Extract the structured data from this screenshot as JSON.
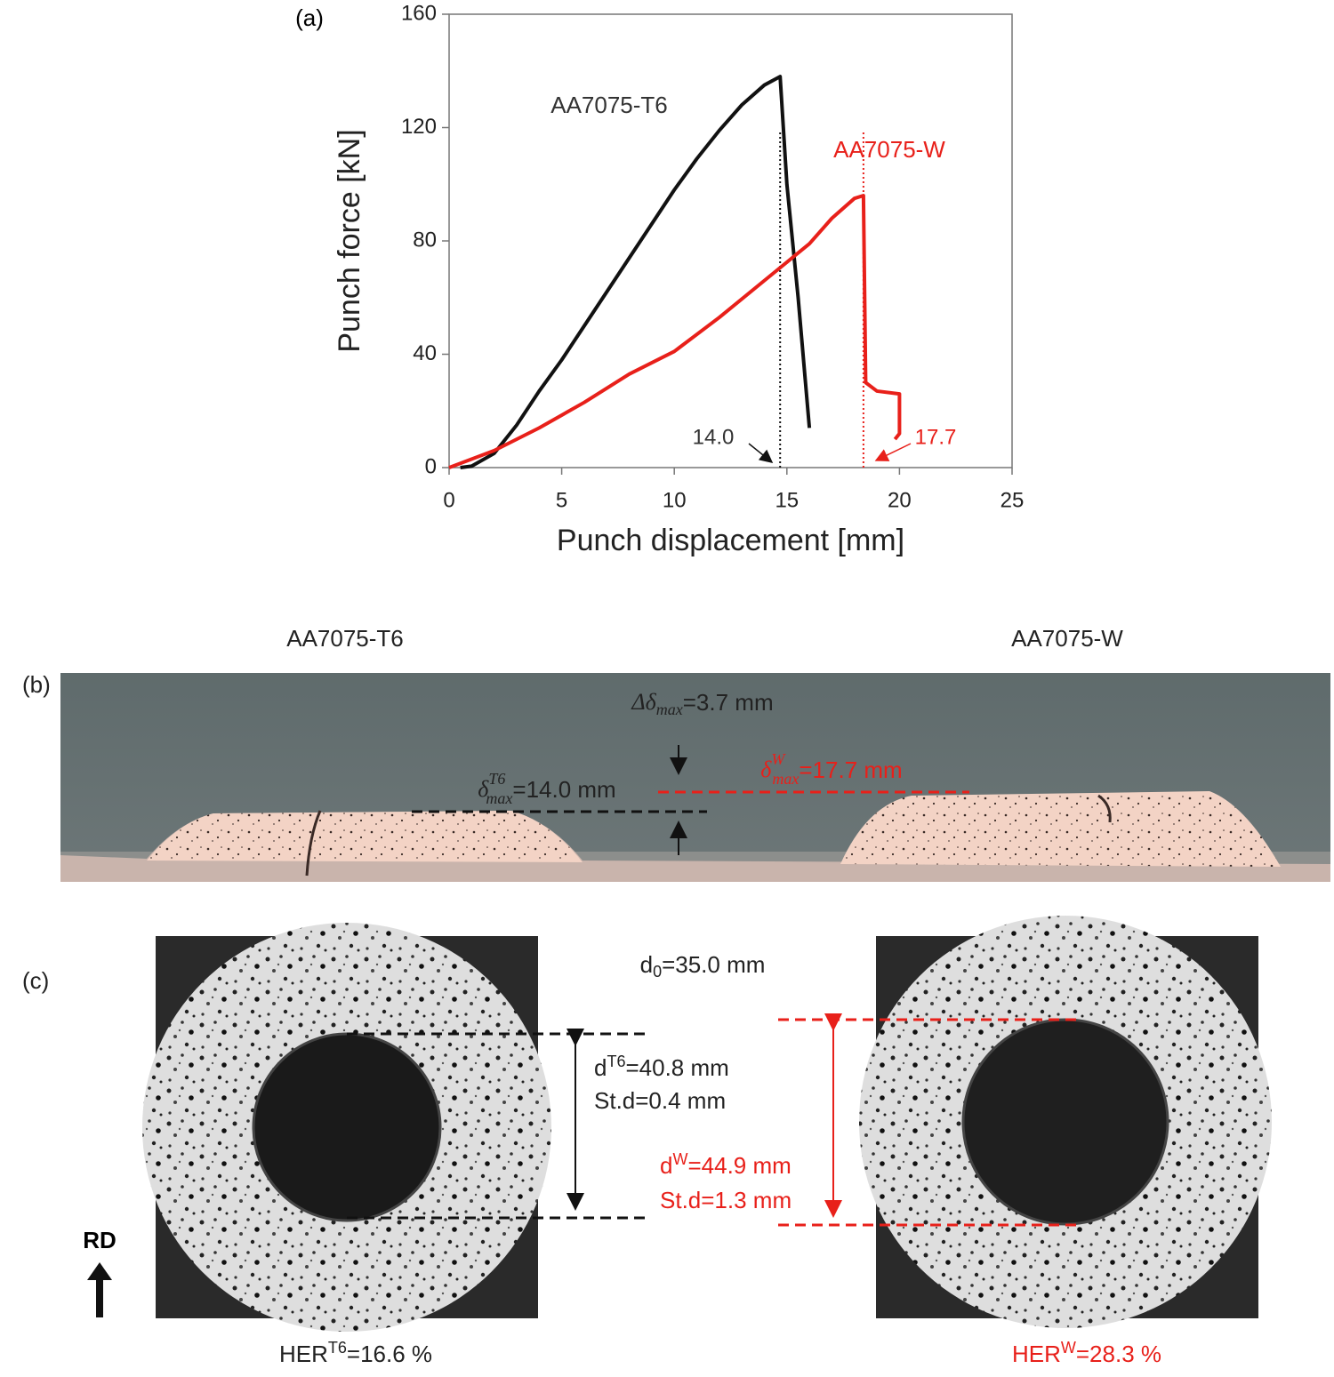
{
  "chart_data": {
    "type": "line",
    "panel_label": "(a)",
    "xlabel": "Punch displacement [mm]",
    "ylabel": "Punch force [kN]",
    "xlim": [
      0,
      25
    ],
    "xticks": [
      0,
      5,
      10,
      15,
      20,
      25
    ],
    "ylim": [
      0,
      160
    ],
    "yticks": [
      0,
      40,
      80,
      120,
      160
    ],
    "series": [
      {
        "name": "AA7075-T6",
        "color": "#111111",
        "x": [
          0.5,
          1,
          2,
          3,
          4,
          5,
          6,
          7,
          8,
          9,
          10,
          11,
          12,
          13,
          14,
          14.7,
          15,
          15.5,
          16
        ],
        "values": [
          0,
          0.5,
          5,
          15,
          27,
          38,
          50,
          62,
          74,
          86,
          98,
          109,
          119,
          128,
          135,
          138,
          100,
          60,
          14
        ]
      },
      {
        "name": "AA7075-W",
        "color": "#e8201a",
        "x": [
          0,
          2,
          4,
          6,
          8,
          10,
          12,
          14,
          16,
          17,
          18,
          18.4,
          18.5,
          19,
          20,
          20,
          19.8
        ],
        "values": [
          0,
          6,
          14,
          23,
          33,
          41,
          53,
          66,
          79,
          88,
          95,
          96,
          30,
          27,
          26,
          12,
          10
        ]
      }
    ],
    "reference_lines": [
      {
        "x": 14.7,
        "color": "#111111"
      },
      {
        "x": 18.4,
        "color": "#e8201a"
      }
    ],
    "annotations": [
      "14.0",
      "17.7"
    ]
  },
  "panel_b": {
    "label": "(b)",
    "left_title": "AA7075-T6",
    "right_title": "AA7075-W",
    "delta": {
      "symbol": "Δδ",
      "sub": "max",
      "rest": "=3.7 mm"
    },
    "t6": {
      "symbol": "δ",
      "sup": "T6",
      "sub": "max",
      "rest": "=14.0 mm"
    },
    "w": {
      "symbol": "δ",
      "sup": "W",
      "sub": "max",
      "rest": "=17.7 mm"
    }
  },
  "panel_c": {
    "label": "(c)",
    "d0": {
      "base": "d",
      "sub": "0",
      "rest": "=35.0 mm"
    },
    "t6": {
      "base": "d",
      "sup": "T6",
      "rest": "=40.8 mm",
      "std": "St.d=0.4 mm"
    },
    "w": {
      "base": "d",
      "sup": "W",
      "rest": "=44.9 mm",
      "std": "St.d=1.3 mm"
    },
    "rd": "RD",
    "her_t6": {
      "base": "HER",
      "sup": "T6",
      "rest": "=16.6 %"
    },
    "her_w": {
      "base": "HER",
      "sup": "W",
      "rest": "=28.3 %"
    }
  }
}
